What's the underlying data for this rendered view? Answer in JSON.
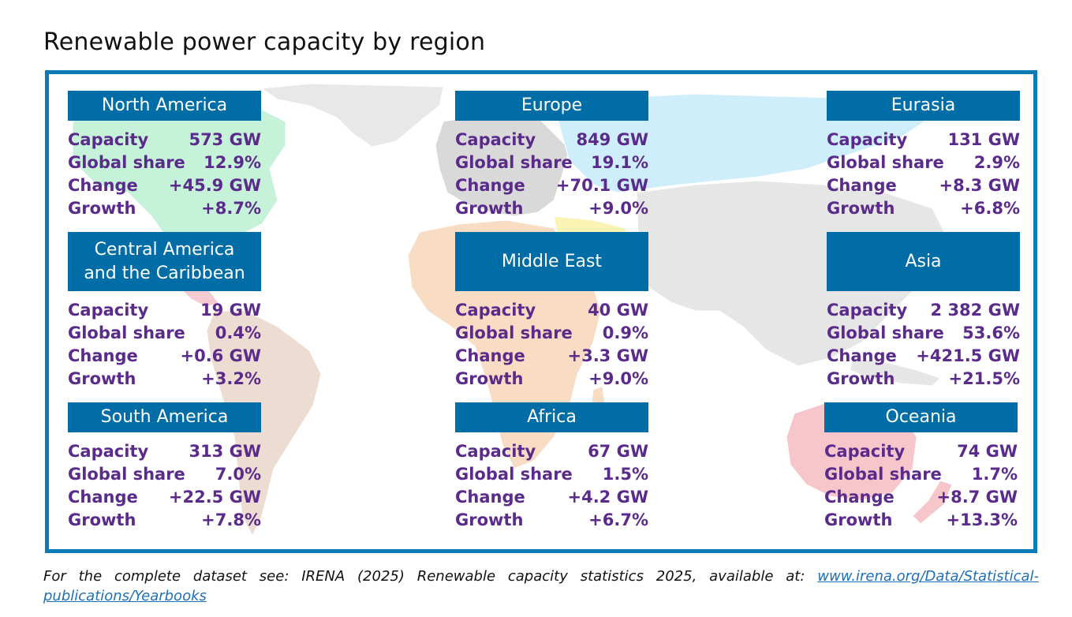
{
  "title": "Renewable power capacity by region",
  "labels": {
    "capacity": "Capacity",
    "share": "Global share",
    "change": "Change",
    "growth": "Growth"
  },
  "regions": [
    {
      "name": "North America",
      "capacity": "573 GW",
      "share": "12.9%",
      "change": "+45.9 GW",
      "growth": "+8.7%"
    },
    {
      "name": "Europe",
      "capacity": "849 GW",
      "share": "19.1%",
      "change": "+70.1 GW",
      "growth": "+9.0%"
    },
    {
      "name": "Eurasia",
      "capacity": "131 GW",
      "share": "2.9%",
      "change": "+8.3 GW",
      "growth": "+6.8%"
    },
    {
      "name": "Central America\nand the Caribbean",
      "capacity": "19 GW",
      "share": "0.4%",
      "change": "+0.6 GW",
      "growth": "+3.2%"
    },
    {
      "name": "Middle East",
      "capacity": "40 GW",
      "share": "0.9%",
      "change": "+3.3 GW",
      "growth": "+9.0%"
    },
    {
      "name": "Asia",
      "capacity": "2 382 GW",
      "share": "53.6%",
      "change": "+421.5 GW",
      "growth": "+21.5%"
    },
    {
      "name": "South America",
      "capacity": "313 GW",
      "share": "7.0%",
      "change": "+22.5 GW",
      "growth": "+7.8%"
    },
    {
      "name": "Africa",
      "capacity": "67 GW",
      "share": "1.5%",
      "change": "+4.2 GW",
      "growth": "+6.7%"
    },
    {
      "name": "Oceania",
      "capacity": "74 GW",
      "share": "1.7%",
      "change": "+8.7 GW",
      "growth": "+13.3%"
    }
  ],
  "footer": {
    "text": "For the complete dataset see: IRENA (2025) Renewable capacity statistics 2025, available at:",
    "link": "www.irena.org/Data/Statistical-publications/Yearbooks"
  },
  "colors": {
    "header_bg": "#006da6",
    "stat_text": "#5b2b8c",
    "frame": "#0a7bb3"
  }
}
